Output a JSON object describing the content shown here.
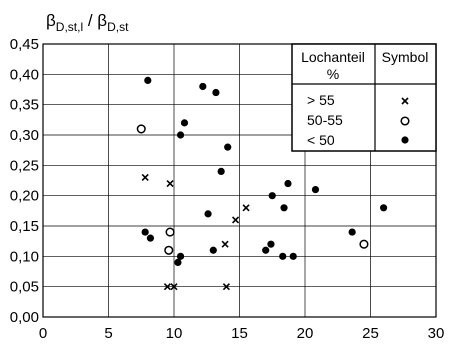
{
  "chart_data": {
    "type": "scatter",
    "title": "",
    "xlabel": "",
    "ylabel": {
      "beta1": "β",
      "sub1": "D,st,l",
      "slash": " / ",
      "beta2": "β",
      "sub2": "D,st"
    },
    "xlim": [
      0,
      30
    ],
    "ylim": [
      0,
      0.45
    ],
    "x_ticks": [
      0,
      5,
      10,
      15,
      20,
      25,
      30
    ],
    "x_tick_labels": [
      "0",
      "5",
      "10",
      "15",
      "20",
      "25",
      "30"
    ],
    "y_ticks": [
      0,
      0.05,
      0.1,
      0.15,
      0.2,
      0.25,
      0.3,
      0.35,
      0.4,
      0.45
    ],
    "y_tick_labels": [
      "0,00",
      "0,05",
      "0,10",
      "0,15",
      "0,20",
      "0,25",
      "0,30",
      "0,35",
      "0,40",
      "0,45"
    ],
    "grid": true,
    "legend": {
      "placement": "top-right",
      "header_col1_line1": "Lochanteil",
      "header_col1_line2": "%",
      "header_col2": "Symbol",
      "entries": [
        {
          "label": "> 55",
          "marker": "cross"
        },
        {
          "label": "50-55",
          "marker": "open-circle"
        },
        {
          "label": "< 50",
          "marker": "filled-circle"
        }
      ]
    },
    "series": [
      {
        "marker": "cross",
        "points": [
          [
            7.8,
            0.23
          ],
          [
            9.7,
            0.22
          ],
          [
            9.5,
            0.05
          ],
          [
            10.0,
            0.05
          ],
          [
            14.0,
            0.05
          ],
          [
            13.9,
            0.12
          ],
          [
            14.7,
            0.16
          ],
          [
            15.5,
            0.18
          ]
        ]
      },
      {
        "marker": "open-circle",
        "points": [
          [
            7.5,
            0.31
          ],
          [
            9.7,
            0.14
          ],
          [
            9.6,
            0.11
          ],
          [
            24.5,
            0.12
          ]
        ]
      },
      {
        "marker": "filled-circle",
        "points": [
          [
            8.0,
            0.39
          ],
          [
            7.8,
            0.14
          ],
          [
            8.2,
            0.13
          ],
          [
            10.5,
            0.3
          ],
          [
            10.8,
            0.32
          ],
          [
            10.3,
            0.09
          ],
          [
            10.5,
            0.1
          ],
          [
            12.2,
            0.38
          ],
          [
            13.2,
            0.37
          ],
          [
            13.6,
            0.24
          ],
          [
            14.1,
            0.28
          ],
          [
            12.6,
            0.17
          ],
          [
            13.0,
            0.11
          ],
          [
            17.0,
            0.11
          ],
          [
            17.4,
            0.12
          ],
          [
            17.5,
            0.2
          ],
          [
            18.4,
            0.18
          ],
          [
            18.7,
            0.22
          ],
          [
            18.3,
            0.1
          ],
          [
            19.1,
            0.1
          ],
          [
            20.8,
            0.21
          ],
          [
            23.6,
            0.14
          ],
          [
            26.0,
            0.18
          ]
        ]
      }
    ]
  }
}
